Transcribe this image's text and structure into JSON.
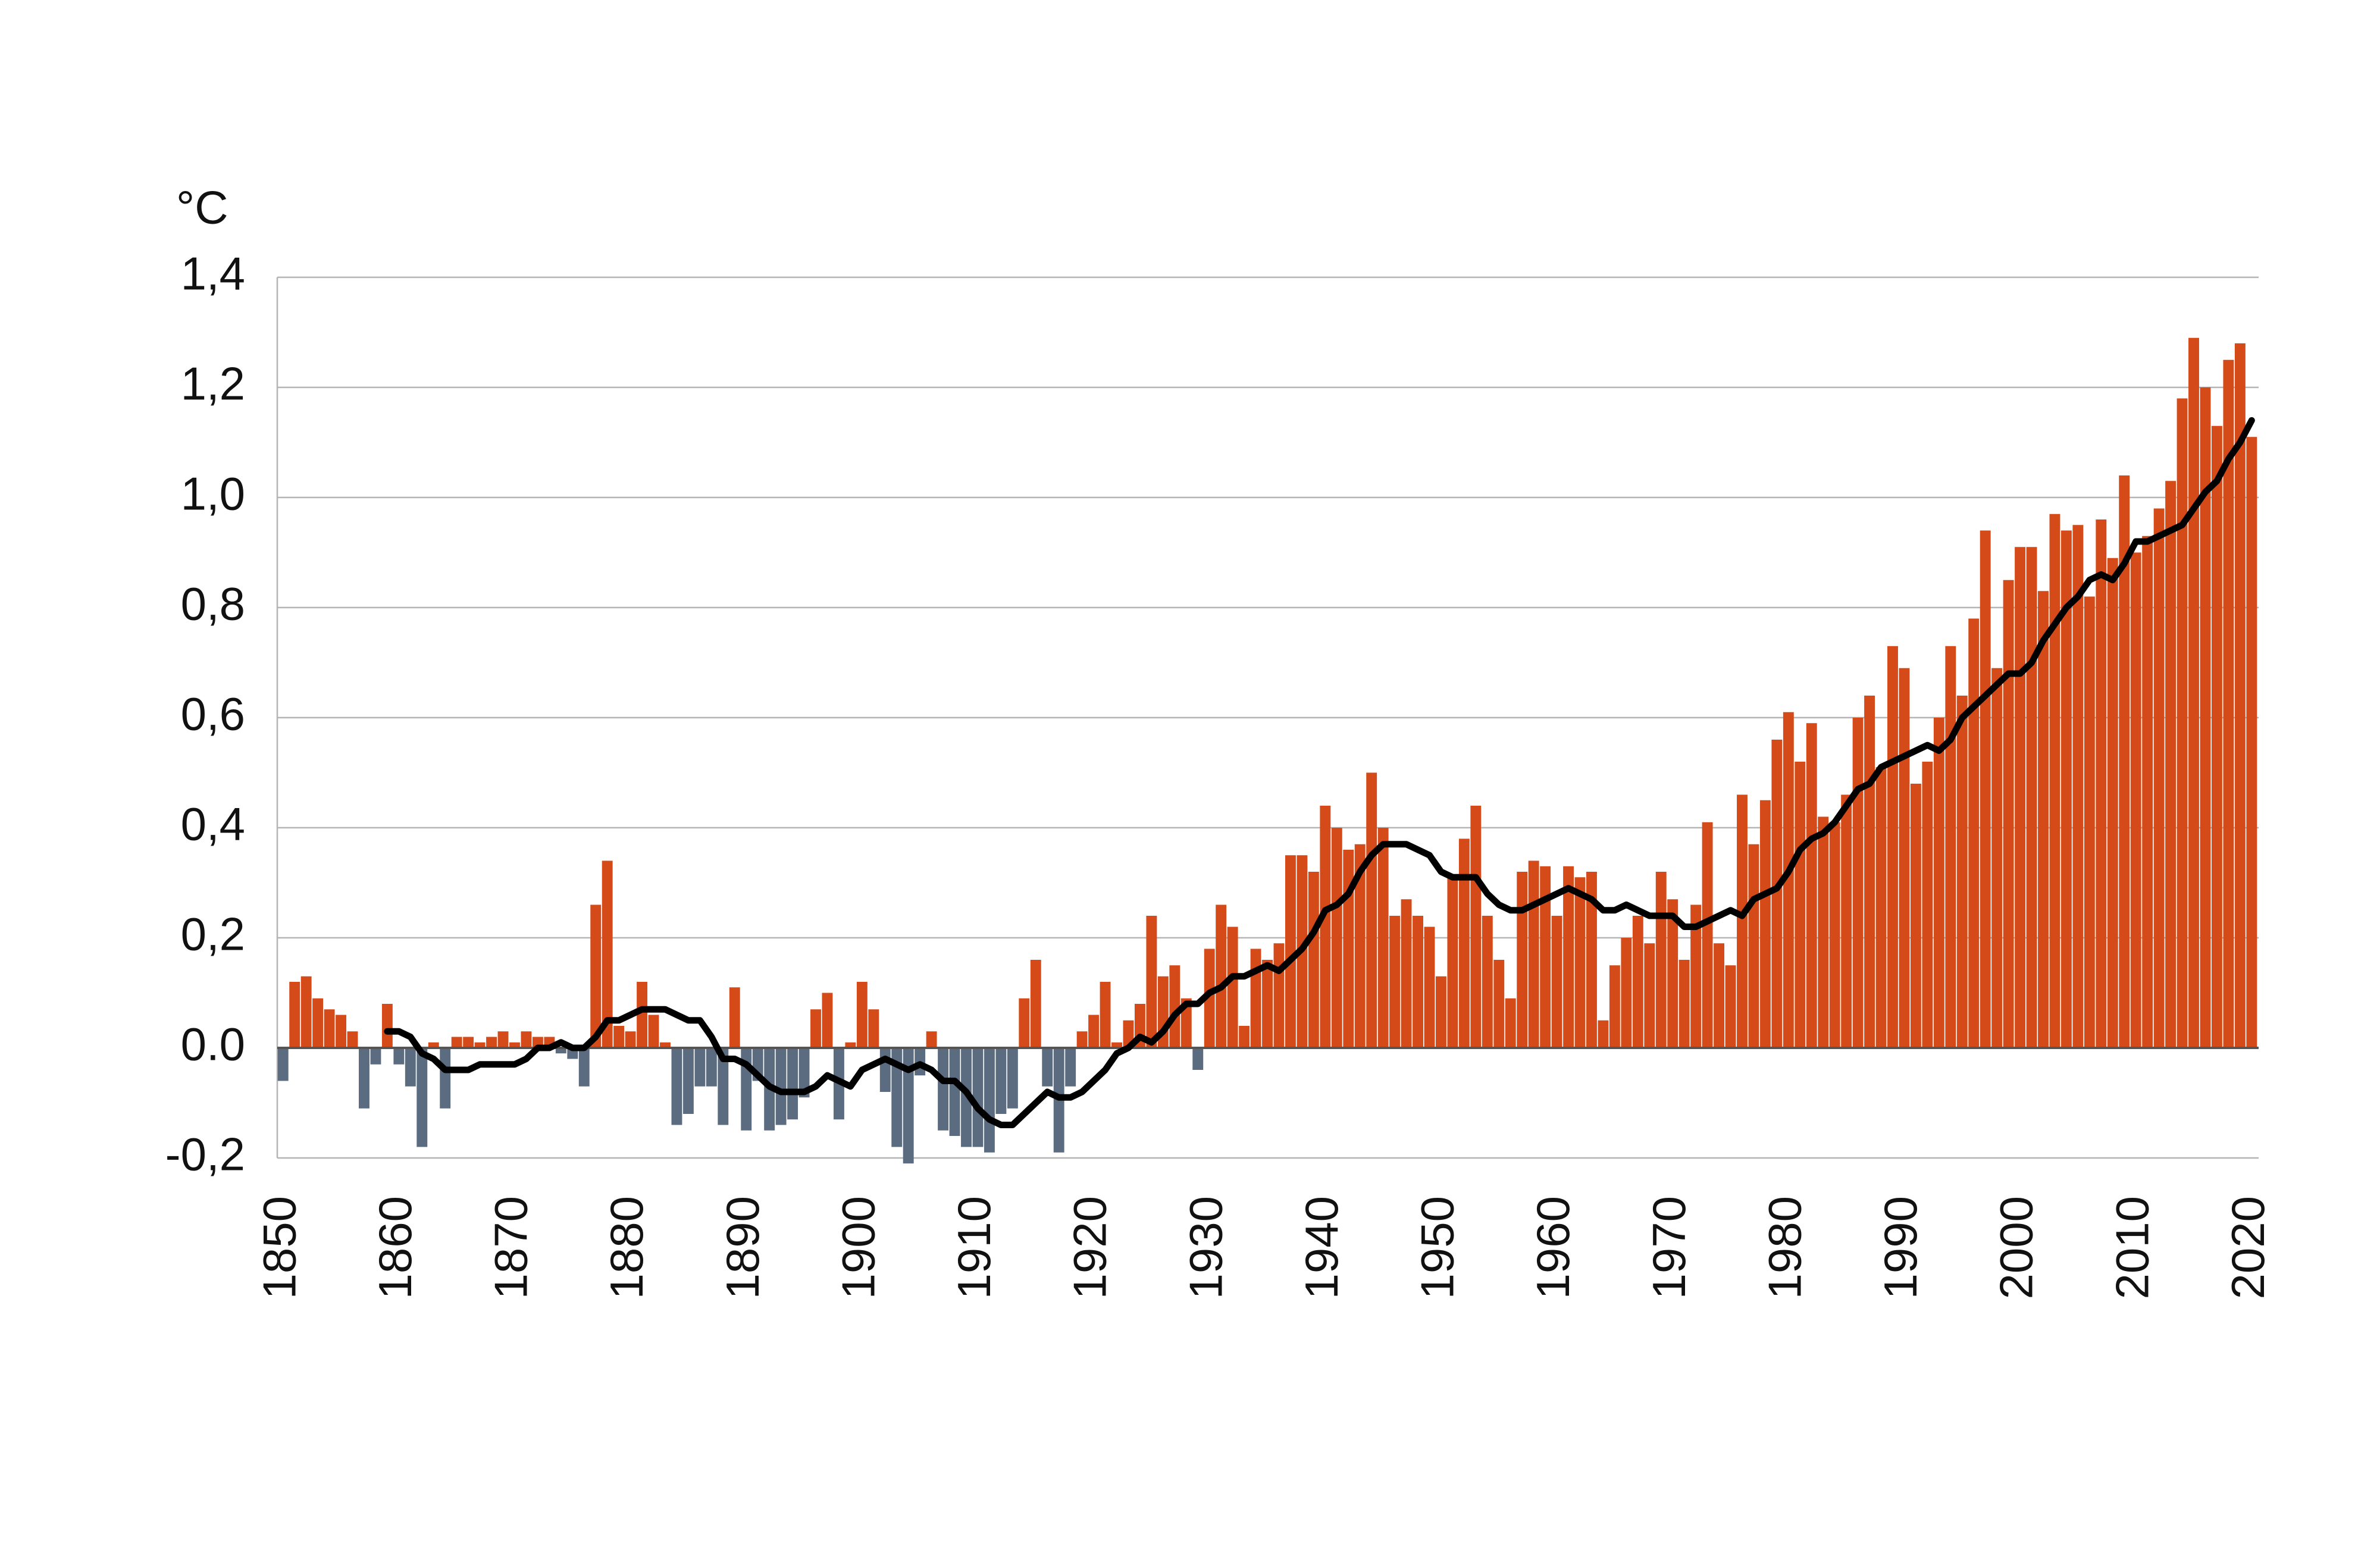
{
  "chart_data": {
    "type": "bar",
    "y_label": "°C",
    "x": [
      1850,
      1851,
      1852,
      1853,
      1854,
      1855,
      1856,
      1857,
      1858,
      1859,
      1860,
      1861,
      1862,
      1863,
      1864,
      1865,
      1866,
      1867,
      1868,
      1869,
      1870,
      1871,
      1872,
      1873,
      1874,
      1875,
      1876,
      1877,
      1878,
      1879,
      1880,
      1881,
      1882,
      1883,
      1884,
      1885,
      1886,
      1887,
      1888,
      1889,
      1890,
      1891,
      1892,
      1893,
      1894,
      1895,
      1896,
      1897,
      1898,
      1899,
      1900,
      1901,
      1902,
      1903,
      1904,
      1905,
      1906,
      1907,
      1908,
      1909,
      1910,
      1911,
      1912,
      1913,
      1914,
      1915,
      1916,
      1917,
      1918,
      1919,
      1920,
      1921,
      1922,
      1923,
      1924,
      1925,
      1926,
      1927,
      1928,
      1929,
      1930,
      1931,
      1932,
      1933,
      1934,
      1935,
      1936,
      1937,
      1938,
      1939,
      1940,
      1941,
      1942,
      1943,
      1944,
      1945,
      1946,
      1947,
      1948,
      1949,
      1950,
      1951,
      1952,
      1953,
      1954,
      1955,
      1956,
      1957,
      1958,
      1959,
      1960,
      1961,
      1962,
      1963,
      1964,
      1965,
      1966,
      1967,
      1968,
      1969,
      1970,
      1971,
      1972,
      1973,
      1974,
      1975,
      1976,
      1977,
      1978,
      1979,
      1980,
      1981,
      1982,
      1983,
      1984,
      1985,
      1986,
      1987,
      1988,
      1989,
      1990,
      1991,
      1992,
      1993,
      1994,
      1995,
      1996,
      1997,
      1998,
      1999,
      2000,
      2001,
      2002,
      2003,
      2004,
      2005,
      2006,
      2007,
      2008,
      2009,
      2010,
      2011,
      2012,
      2013,
      2014,
      2015,
      2016,
      2017,
      2018,
      2019,
      2020
    ],
    "values": [
      -0.06,
      0.12,
      0.13,
      0.09,
      0.07,
      0.06,
      0.03,
      -0.11,
      -0.03,
      0.08,
      -0.03,
      -0.07,
      -0.18,
      0.01,
      -0.11,
      0.02,
      0.02,
      0.01,
      0.02,
      0.03,
      0.01,
      0.03,
      0.02,
      0.02,
      -0.01,
      -0.02,
      -0.07,
      0.26,
      0.34,
      0.04,
      0.03,
      0.12,
      0.06,
      0.01,
      -0.14,
      -0.12,
      -0.07,
      -0.07,
      -0.14,
      0.11,
      -0.15,
      -0.06,
      -0.15,
      -0.14,
      -0.13,
      -0.09,
      0.07,
      0.1,
      -0.13,
      0.01,
      0.12,
      0.07,
      -0.08,
      -0.18,
      -0.21,
      -0.05,
      0.03,
      -0.15,
      -0.16,
      -0.18,
      -0.18,
      -0.19,
      -0.12,
      -0.11,
      0.09,
      0.16,
      -0.07,
      -0.19,
      -0.07,
      0.03,
      0.06,
      0.12,
      0.01,
      0.05,
      0.08,
      0.24,
      0.13,
      0.15,
      0.09,
      -0.04,
      0.18,
      0.26,
      0.22,
      0.04,
      0.18,
      0.16,
      0.19,
      0.35,
      0.35,
      0.32,
      0.44,
      0.4,
      0.36,
      0.37,
      0.5,
      0.4,
      0.24,
      0.27,
      0.24,
      0.22,
      0.13,
      0.31,
      0.38,
      0.44,
      0.24,
      0.16,
      0.09,
      0.32,
      0.34,
      0.33,
      0.24,
      0.33,
      0.31,
      0.32,
      0.05,
      0.15,
      0.2,
      0.24,
      0.19,
      0.32,
      0.27,
      0.16,
      0.26,
      0.41,
      0.19,
      0.15,
      0.46,
      0.37,
      0.45,
      0.56,
      0.61,
      0.52,
      0.59,
      0.42,
      0.41,
      0.46,
      0.6,
      0.64,
      0.51,
      0.73,
      0.69,
      0.48,
      0.52,
      0.6,
      0.73,
      0.64,
      0.78,
      0.94,
      0.69,
      0.85,
      0.91,
      0.91,
      0.83,
      0.97,
      0.94,
      0.95,
      0.82,
      0.96,
      0.89,
      1.04,
      0.9,
      0.93,
      0.98,
      1.03,
      1.18,
      1.29,
      1.2,
      1.13,
      1.25,
      1.28,
      1.11
    ],
    "positive_color": "#d44b19",
    "negative_color": "#5b6b80",
    "trend": {
      "color": "#000000",
      "values": [
        null,
        null,
        null,
        null,
        null,
        null,
        null,
        null,
        null,
        0.03,
        0.03,
        0.02,
        -0.01,
        -0.02,
        -0.04,
        -0.04,
        -0.04,
        -0.03,
        -0.03,
        -0.03,
        -0.03,
        -0.02,
        0.0,
        0.0,
        0.01,
        0.0,
        0.0,
        0.02,
        0.05,
        0.05,
        0.06,
        0.07,
        0.07,
        0.07,
        0.06,
        0.05,
        0.05,
        0.02,
        -0.02,
        -0.02,
        -0.03,
        -0.05,
        -0.07,
        -0.08,
        -0.08,
        -0.08,
        -0.07,
        -0.05,
        -0.06,
        -0.07,
        -0.04,
        -0.03,
        -0.02,
        -0.03,
        -0.04,
        -0.03,
        -0.04,
        -0.06,
        -0.06,
        -0.08,
        -0.11,
        -0.13,
        -0.14,
        -0.14,
        -0.12,
        -0.1,
        -0.08,
        -0.09,
        -0.09,
        -0.08,
        -0.06,
        -0.04,
        -0.01,
        0.0,
        0.02,
        0.01,
        0.03,
        0.06,
        0.08,
        0.08,
        0.1,
        0.11,
        0.13,
        0.13,
        0.14,
        0.15,
        0.14,
        0.16,
        0.18,
        0.21,
        0.25,
        0.26,
        0.28,
        0.32,
        0.35,
        0.37,
        0.37,
        0.37,
        0.36,
        0.35,
        0.32,
        0.31,
        0.31,
        0.31,
        0.28,
        0.26,
        0.25,
        0.25,
        0.26,
        0.27,
        0.28,
        0.29,
        0.28,
        0.27,
        0.25,
        0.25,
        0.26,
        0.25,
        0.24,
        0.24,
        0.24,
        0.22,
        0.22,
        0.23,
        0.24,
        0.25,
        0.24,
        0.27,
        0.28,
        0.29,
        0.32,
        0.36,
        0.38,
        0.39,
        0.41,
        0.44,
        0.47,
        0.48,
        0.51,
        0.52,
        0.53,
        0.54,
        0.55,
        0.54,
        0.56,
        0.6,
        0.62,
        0.64,
        0.66,
        0.68,
        0.68,
        0.7,
        0.74,
        0.77,
        0.8,
        0.82,
        0.85,
        0.86,
        0.85,
        0.88,
        0.92,
        0.92,
        0.93,
        0.94,
        0.95,
        0.98,
        1.01,
        1.03,
        1.07,
        1.1,
        1.14
      ]
    },
    "xlim": [
      1849.5,
      2020.6
    ],
    "xticks": [
      1850,
      1860,
      1870,
      1880,
      1890,
      1900,
      1910,
      1920,
      1930,
      1940,
      1950,
      1960,
      1970,
      1980,
      1990,
      2000,
      2010,
      2020
    ],
    "ylim": [
      -0.2,
      1.4
    ],
    "yticks": [
      {
        "value": -0.2,
        "label": "-0,2"
      },
      {
        "value": 0,
        "label": "0.0"
      },
      {
        "value": 0.2,
        "label": "0,2"
      },
      {
        "value": 0.4,
        "label": "0,4"
      },
      {
        "value": 0.6,
        "label": "0,6"
      },
      {
        "value": 0.8,
        "label": "0,8"
      },
      {
        "value": 1.0,
        "label": "1,0"
      },
      {
        "value": 1.2,
        "label": "1,2"
      },
      {
        "value": 1.4,
        "label": "1,4"
      }
    ],
    "grid": true
  }
}
